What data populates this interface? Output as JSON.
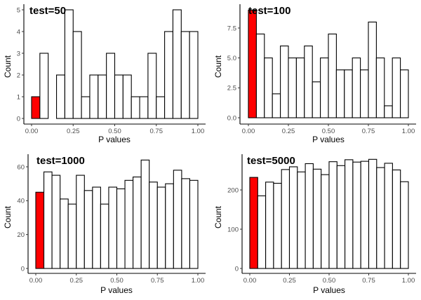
{
  "chart_data": [
    {
      "type": "bar",
      "title": "test=50",
      "xlabel": "P values",
      "ylabel": "Count",
      "bin_width": 0.05,
      "bin_starts": [
        0.0,
        0.05,
        0.1,
        0.15,
        0.2,
        0.25,
        0.3,
        0.35,
        0.4,
        0.45,
        0.5,
        0.55,
        0.6,
        0.65,
        0.7,
        0.75,
        0.8,
        0.85,
        0.9,
        0.95
      ],
      "values": [
        1,
        3,
        0,
        2,
        5,
        4,
        1,
        2,
        2,
        3,
        2,
        2,
        1,
        1,
        3,
        1,
        4,
        5,
        4,
        4
      ],
      "highlight_bins": [
        0
      ],
      "xlim": [
        0,
        1
      ],
      "ylim": [
        0,
        5
      ],
      "x_ticks": [
        "0.00",
        "0.25",
        "0.50",
        "0.75",
        "1.00"
      ],
      "y_ticks": [
        "0",
        "1",
        "2",
        "3",
        "4",
        "5"
      ],
      "y_tick_values": [
        0,
        1,
        2,
        3,
        4,
        5
      ],
      "grid": false
    },
    {
      "type": "bar",
      "title": "test=100",
      "xlabel": "P values",
      "ylabel": "Count",
      "bin_width": 0.05,
      "bin_starts": [
        0.0,
        0.05,
        0.1,
        0.15,
        0.2,
        0.25,
        0.3,
        0.35,
        0.4,
        0.45,
        0.5,
        0.55,
        0.6,
        0.65,
        0.7,
        0.75,
        0.8,
        0.85,
        0.9,
        0.95
      ],
      "values": [
        9,
        7,
        5,
        2,
        6,
        5,
        5,
        6,
        3,
        5,
        7,
        4,
        4,
        5,
        4,
        8,
        5,
        1,
        5,
        4
      ],
      "highlight_bins": [
        0
      ],
      "xlim": [
        0,
        1
      ],
      "ylim": [
        0,
        9
      ],
      "x_ticks": [
        "0.00",
        "0.25",
        "0.50",
        "0.75",
        "1.00"
      ],
      "y_ticks": [
        "0.0",
        "2.5",
        "5.0",
        "7.5"
      ],
      "y_tick_values": [
        0,
        2.5,
        5,
        7.5
      ],
      "grid": false
    },
    {
      "type": "bar",
      "title": "test=1000",
      "xlabel": "P values",
      "ylabel": "Count",
      "bin_width": 0.05,
      "bin_starts": [
        0.0,
        0.05,
        0.1,
        0.15,
        0.2,
        0.25,
        0.3,
        0.35,
        0.4,
        0.45,
        0.5,
        0.55,
        0.6,
        0.65,
        0.7,
        0.75,
        0.8,
        0.85,
        0.9,
        0.95
      ],
      "values": [
        45,
        57,
        55,
        41,
        38,
        55,
        46,
        48,
        38,
        48,
        47,
        52,
        54,
        64,
        51,
        48,
        50,
        58,
        53,
        52
      ],
      "highlight_bins": [
        0
      ],
      "xlim": [
        0,
        1
      ],
      "ylim": [
        0,
        64
      ],
      "x_ticks": [
        "0.00",
        "0.25",
        "0.50",
        "0.75",
        "1.00"
      ],
      "y_ticks": [
        "0",
        "20",
        "40",
        "60"
      ],
      "y_tick_values": [
        0,
        20,
        40,
        60
      ],
      "grid": false
    },
    {
      "type": "bar",
      "title": "test=5000",
      "xlabel": "P values",
      "ylabel": "Count",
      "bin_width": 0.05,
      "bin_starts": [
        0.0,
        0.05,
        0.1,
        0.15,
        0.2,
        0.25,
        0.3,
        0.35,
        0.4,
        0.45,
        0.5,
        0.55,
        0.6,
        0.65,
        0.7,
        0.75,
        0.8,
        0.85,
        0.9,
        0.95
      ],
      "values": [
        232,
        185,
        220,
        217,
        252,
        259,
        246,
        267,
        253,
        239,
        272,
        262,
        277,
        271,
        273,
        278,
        257,
        268,
        251,
        221
      ],
      "highlight_bins": [
        0
      ],
      "xlim": [
        0,
        1
      ],
      "ylim": [
        0,
        278
      ],
      "x_ticks": [
        "0.00",
        "0.25",
        "0.50",
        "0.75",
        "1.00"
      ],
      "y_ticks": [
        "0",
        "100",
        "200"
      ],
      "y_tick_values": [
        0,
        100,
        200
      ],
      "grid": false
    }
  ],
  "colors": {
    "highlight_fill": "#ff0000",
    "bar_fill": "#ffffff",
    "bar_stroke": "#000000"
  }
}
